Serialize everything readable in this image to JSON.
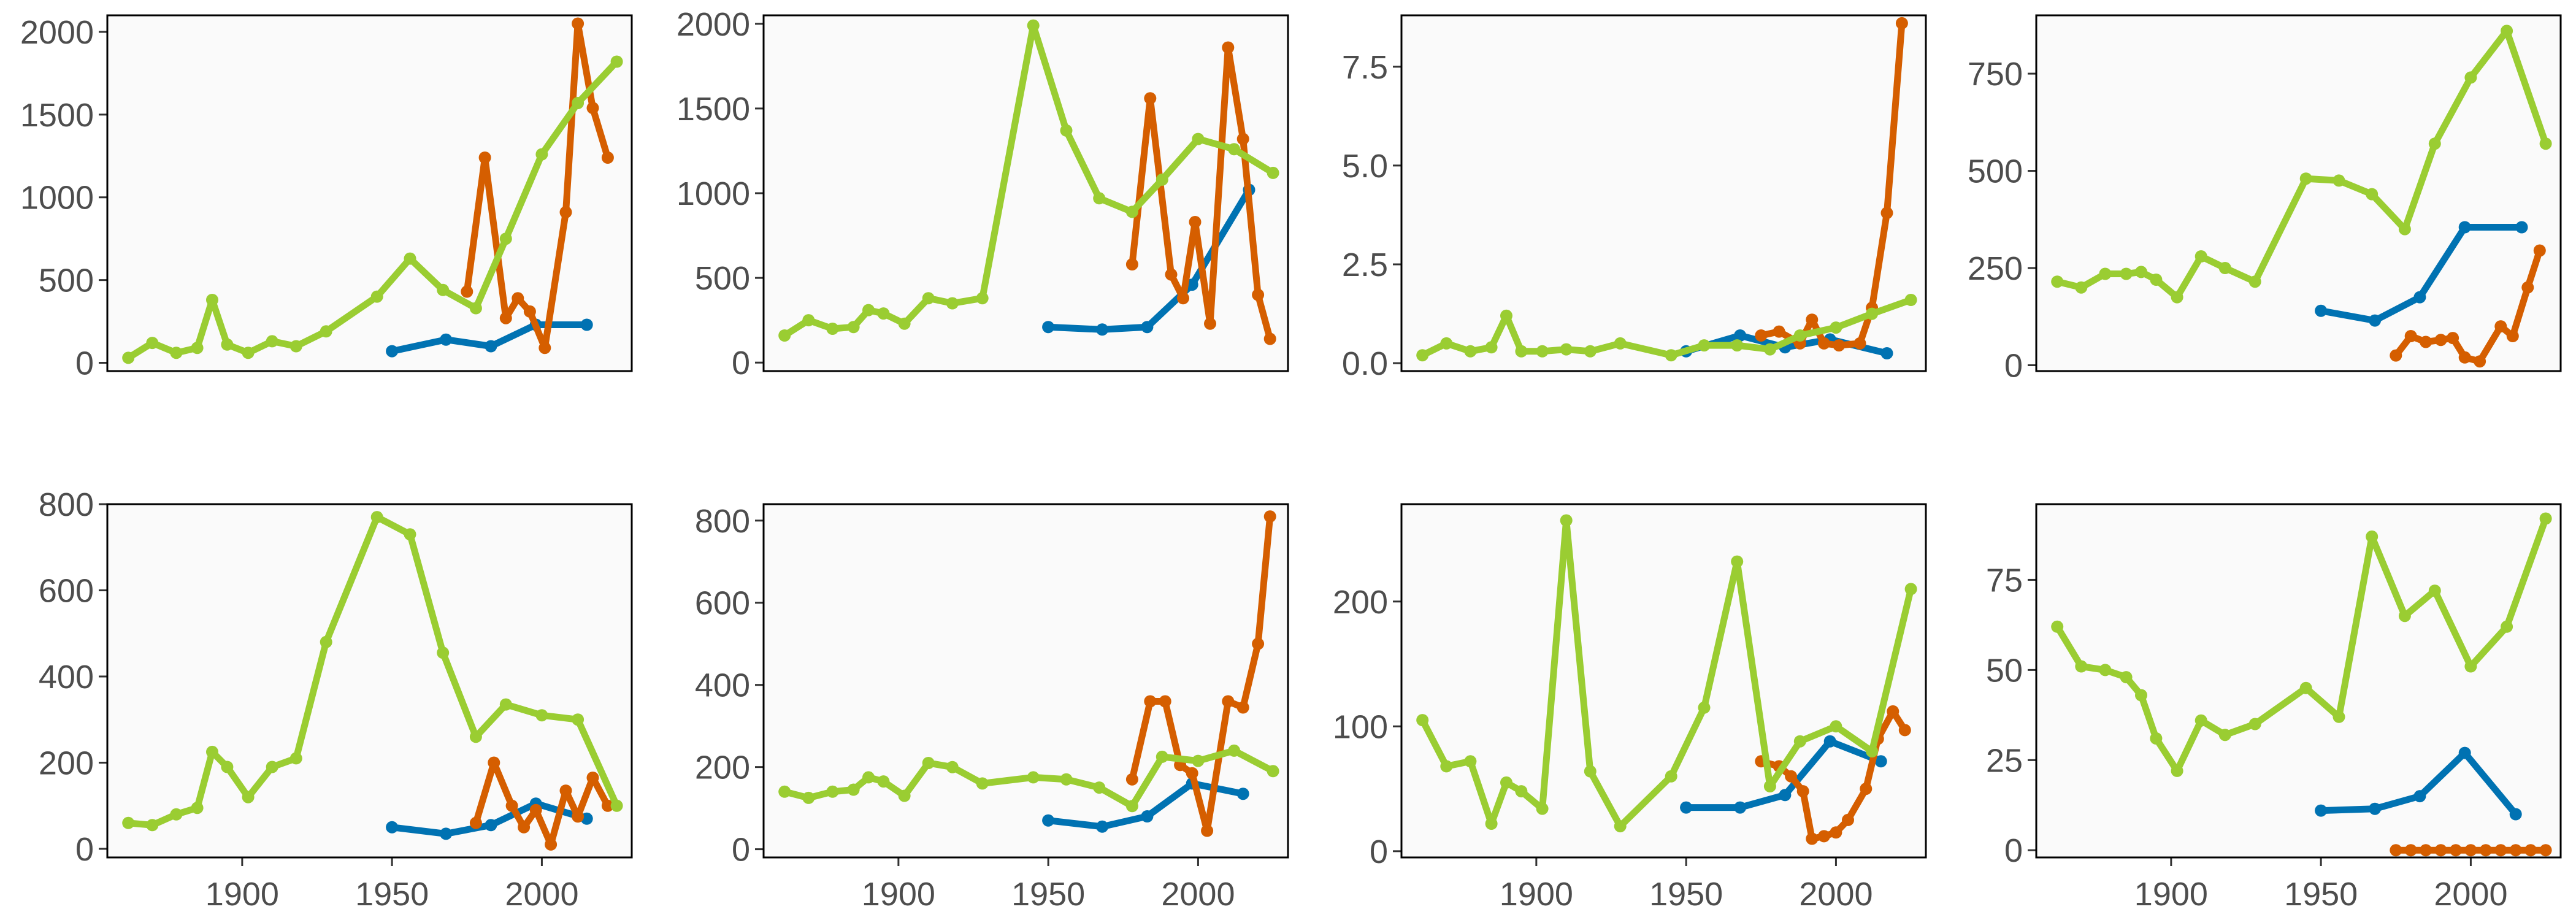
{
  "figure": {
    "x_ticks": [
      "1900",
      "1950",
      "2000"
    ],
    "colors": {
      "blue": "#0072B2",
      "orange": "#D55E00",
      "green": "#9ACD32",
      "panel_bg": "#FAFAFA",
      "frame": "#000000"
    }
  },
  "chart_data": [
    {
      "type": "line",
      "xlim": [
        1855,
        2030
      ],
      "ylim": [
        -50,
        2100
      ],
      "y_ticks": [
        0,
        500,
        1000,
        1500,
        2000
      ],
      "series": [
        {
          "color": "#0072B2",
          "x": [
            1950,
            1968,
            1983,
            1998,
            2015
          ],
          "y": [
            70,
            140,
            100,
            230,
            230
          ]
        },
        {
          "color": "#D55E00",
          "x": [
            1975,
            1981,
            1988,
            1992,
            1996,
            2001,
            2008,
            2012,
            2017,
            2022
          ],
          "y": [
            430,
            1240,
            270,
            390,
            310,
            90,
            910,
            2050,
            1540,
            1240
          ]
        },
        {
          "color": "#9ACD32",
          "x": [
            1862,
            1870,
            1878,
            1885,
            1890,
            1895,
            1902,
            1910,
            1918,
            1928,
            1945,
            1956,
            1967,
            1978,
            1988,
            2000,
            2012,
            2025
          ],
          "y": [
            30,
            120,
            60,
            90,
            380,
            110,
            60,
            130,
            100,
            190,
            400,
            630,
            440,
            330,
            750,
            1260,
            1570,
            1820
          ]
        }
      ]
    },
    {
      "type": "line",
      "xlim": [
        1855,
        2030
      ],
      "ylim": [
        -50,
        2050
      ],
      "y_ticks": [
        0,
        500,
        1000,
        1500,
        2000
      ],
      "series": [
        {
          "color": "#0072B2",
          "x": [
            1950,
            1968,
            1983,
            1998,
            2017
          ],
          "y": [
            210,
            195,
            210,
            460,
            1020
          ]
        },
        {
          "color": "#D55E00",
          "x": [
            1978,
            1984,
            1991,
            1995,
            1999,
            2004,
            2010,
            2015,
            2020,
            2024
          ],
          "y": [
            580,
            1560,
            520,
            380,
            830,
            230,
            1860,
            1320,
            400,
            140
          ]
        },
        {
          "color": "#9ACD32",
          "x": [
            1862,
            1870,
            1878,
            1885,
            1890,
            1895,
            1902,
            1910,
            1918,
            1928,
            1945,
            1956,
            1967,
            1978,
            1988,
            2000,
            2012,
            2025
          ],
          "y": [
            160,
            250,
            200,
            210,
            310,
            290,
            230,
            380,
            350,
            380,
            1990,
            1370,
            970,
            890,
            1080,
            1320,
            1260,
            1120
          ]
        }
      ]
    },
    {
      "type": "line",
      "xlim": [
        1855,
        2030
      ],
      "ylim": [
        -0.2,
        8.8
      ],
      "y_ticks": [
        "0.0",
        "2.5",
        "5.0",
        "7.5"
      ],
      "series": [
        {
          "color": "#0072B2",
          "x": [
            1950,
            1968,
            1983,
            1998,
            2017
          ],
          "y": [
            0.3,
            0.7,
            0.4,
            0.6,
            0.25
          ]
        },
        {
          "color": "#D55E00",
          "x": [
            1975,
            1981,
            1988,
            1992,
            1996,
            2001,
            2008,
            2012,
            2017,
            2022
          ],
          "y": [
            0.7,
            0.8,
            0.5,
            1.1,
            0.5,
            0.45,
            0.5,
            1.4,
            3.8,
            8.6
          ]
        },
        {
          "color": "#9ACD32",
          "x": [
            1862,
            1870,
            1878,
            1885,
            1890,
            1895,
            1902,
            1910,
            1918,
            1928,
            1945,
            1956,
            1967,
            1978,
            1988,
            2000,
            2012,
            2025
          ],
          "y": [
            0.2,
            0.5,
            0.3,
            0.4,
            1.2,
            0.3,
            0.3,
            0.35,
            0.3,
            0.5,
            0.2,
            0.45,
            0.45,
            0.35,
            0.7,
            0.9,
            1.25,
            1.6
          ]
        }
      ]
    },
    {
      "type": "line",
      "xlim": [
        1855,
        2030
      ],
      "ylim": [
        -15,
        900
      ],
      "y_ticks": [
        0,
        250,
        500,
        750
      ],
      "series": [
        {
          "color": "#0072B2",
          "x": [
            1950,
            1968,
            1983,
            1998,
            2017
          ],
          "y": [
            140,
            115,
            175,
            355,
            355
          ]
        },
        {
          "color": "#D55E00",
          "x": [
            1975,
            1980,
            1985,
            1990,
            1994,
            1998,
            2003,
            2010,
            2014,
            2019,
            2023
          ],
          "y": [
            25,
            75,
            60,
            65,
            70,
            20,
            10,
            100,
            75,
            200,
            295
          ]
        },
        {
          "color": "#9ACD32",
          "x": [
            1862,
            1870,
            1878,
            1885,
            1890,
            1895,
            1902,
            1910,
            1918,
            1928,
            1945,
            1956,
            1967,
            1978,
            1988,
            2000,
            2012,
            2025
          ],
          "y": [
            215,
            200,
            235,
            235,
            240,
            220,
            175,
            280,
            250,
            215,
            480,
            475,
            440,
            350,
            570,
            740,
            860,
            570
          ]
        }
      ]
    },
    {
      "type": "line",
      "xlim": [
        1855,
        2030
      ],
      "ylim": [
        -20,
        800
      ],
      "y_ticks": [
        0,
        200,
        400,
        600,
        800
      ],
      "series": [
        {
          "color": "#0072B2",
          "x": [
            1950,
            1968,
            1983,
            1998,
            2015
          ],
          "y": [
            50,
            35,
            55,
            105,
            70
          ]
        },
        {
          "color": "#D55E00",
          "x": [
            1978,
            1984,
            1990,
            1994,
            1998,
            2003,
            2008,
            2012,
            2017,
            2022
          ],
          "y": [
            60,
            200,
            100,
            50,
            90,
            10,
            135,
            75,
            165,
            100
          ]
        },
        {
          "color": "#9ACD32",
          "x": [
            1862,
            1870,
            1878,
            1885,
            1890,
            1895,
            1902,
            1910,
            1918,
            1928,
            1945,
            1956,
            1967,
            1978,
            1988,
            2000,
            2012,
            2025
          ],
          "y": [
            60,
            55,
            80,
            95,
            225,
            190,
            120,
            190,
            210,
            480,
            770,
            730,
            455,
            260,
            335,
            310,
            300,
            100
          ]
        }
      ]
    },
    {
      "type": "line",
      "xlim": [
        1855,
        2030
      ],
      "ylim": [
        -20,
        840
      ],
      "y_ticks": [
        0,
        200,
        400,
        600,
        800
      ],
      "series": [
        {
          "color": "#0072B2",
          "x": [
            1950,
            1968,
            1983,
            1998,
            2015
          ],
          "y": [
            70,
            55,
            80,
            160,
            135
          ]
        },
        {
          "color": "#D55E00",
          "x": [
            1978,
            1984,
            1989,
            1994,
            1998,
            2003,
            2010,
            2015,
            2020,
            2024
          ],
          "y": [
            170,
            360,
            360,
            205,
            185,
            45,
            360,
            345,
            500,
            810
          ]
        },
        {
          "color": "#9ACD32",
          "x": [
            1862,
            1870,
            1878,
            1885,
            1890,
            1895,
            1902,
            1910,
            1918,
            1928,
            1945,
            1956,
            1967,
            1978,
            1988,
            2000,
            2012,
            2025
          ],
          "y": [
            140,
            125,
            140,
            145,
            175,
            165,
            130,
            210,
            200,
            160,
            175,
            170,
            150,
            105,
            225,
            215,
            240,
            190
          ]
        }
      ]
    },
    {
      "type": "line",
      "xlim": [
        1855,
        2030
      ],
      "ylim": [
        -5,
        278
      ],
      "y_ticks": [
        0,
        100,
        200
      ],
      "series": [
        {
          "color": "#0072B2",
          "x": [
            1950,
            1968,
            1983,
            1998,
            2015
          ],
          "y": [
            35,
            35,
            45,
            88,
            72
          ]
        },
        {
          "color": "#D55E00",
          "x": [
            1975,
            1981,
            1985,
            1989,
            1992,
            1996,
            2000,
            2004,
            2010,
            2014,
            2019,
            2023
          ],
          "y": [
            72,
            68,
            60,
            48,
            10,
            12,
            15,
            25,
            50,
            90,
            112,
            97
          ]
        },
        {
          "color": "#9ACD32",
          "x": [
            1862,
            1870,
            1878,
            1885,
            1890,
            1895,
            1902,
            1910,
            1918,
            1928,
            1945,
            1956,
            1967,
            1978,
            1988,
            2000,
            2012,
            2025
          ],
          "y": [
            105,
            68,
            72,
            22,
            55,
            48,
            34,
            265,
            64,
            20,
            60,
            115,
            232,
            52,
            88,
            100,
            80,
            210
          ]
        }
      ]
    },
    {
      "type": "line",
      "xlim": [
        1855,
        2030
      ],
      "ylim": [
        -2,
        96
      ],
      "y_ticks": [
        0,
        25,
        50,
        75
      ],
      "series": [
        {
          "color": "#0072B2",
          "x": [
            1950,
            1968,
            1983,
            1998,
            2015
          ],
          "y": [
            11,
            11.5,
            15,
            27,
            10
          ]
        },
        {
          "color": "#D55E00",
          "x": [
            1975,
            1980,
            1985,
            1990,
            1995,
            2000,
            2005,
            2010,
            2015,
            2020,
            2025
          ],
          "y": [
            0,
            0,
            0,
            0,
            0,
            0,
            0,
            0,
            0,
            0,
            0
          ]
        },
        {
          "color": "#9ACD32",
          "x": [
            1862,
            1870,
            1878,
            1885,
            1890,
            1895,
            1902,
            1910,
            1918,
            1928,
            1945,
            1956,
            1967,
            1978,
            1988,
            2000,
            2012,
            2025
          ],
          "y": [
            62,
            51,
            50,
            48,
            43,
            31,
            22,
            36,
            32,
            35,
            45,
            37,
            87,
            65,
            72,
            51,
            62,
            92
          ]
        }
      ]
    }
  ]
}
